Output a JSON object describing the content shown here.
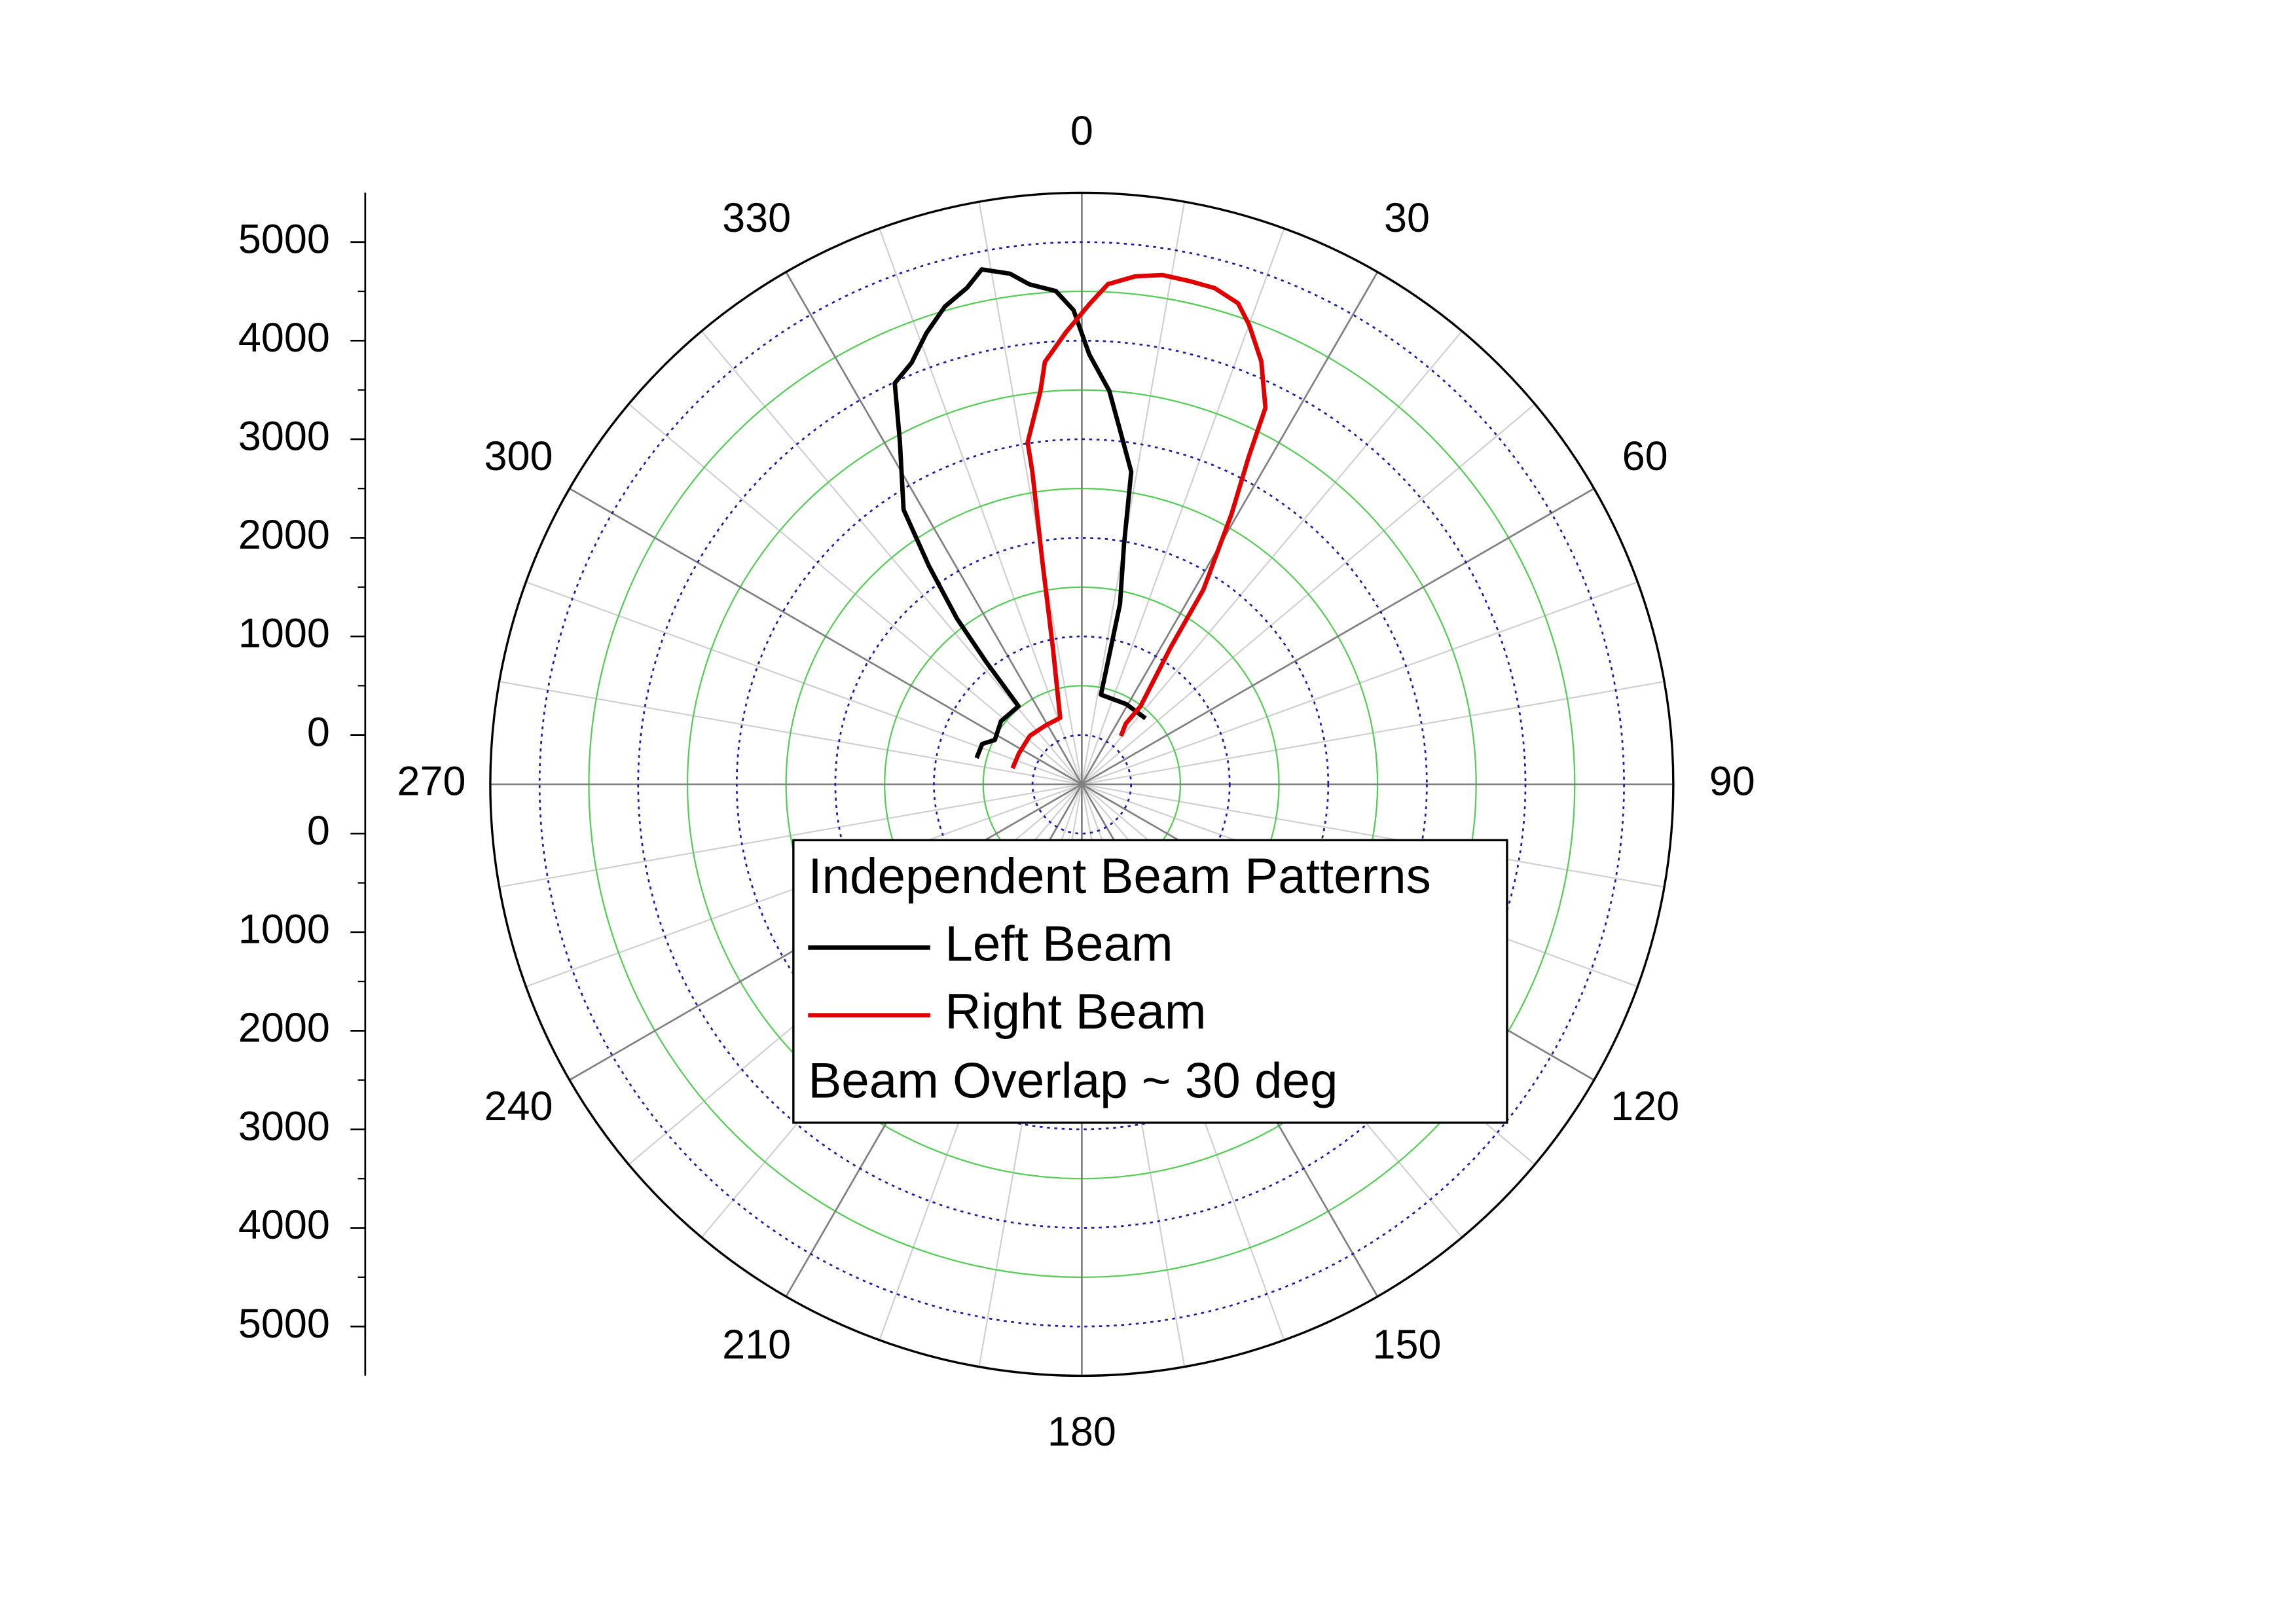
{
  "chart_data": {
    "type": "polar",
    "theta_ticks": [
      0,
      30,
      60,
      90,
      120,
      150,
      180,
      210,
      240,
      270,
      300,
      330
    ],
    "rlim": [
      -500,
      5500
    ],
    "rticks": [
      0,
      1000,
      2000,
      3000,
      4000,
      5000
    ],
    "legend_title": "Independent Beam Patterns",
    "annotation": "Beam Overlap ~ 30 deg",
    "series": [
      {
        "name": "Left Beam",
        "color": "#000000",
        "theta": [
          284,
          292,
          297,
          308,
          321,
          322,
          323,
          325,
          327,
          332,
          335,
          338,
          341,
          344,
          347,
          349,
          352,
          354,
          357,
          359,
          1,
          4,
          6,
          9,
          10,
          12,
          12,
          12,
          29,
          44
        ],
        "values": [
          600,
          590,
          490,
          540,
          520,
          1070,
          1600,
          2200,
          2820,
          3430,
          3990,
          4110,
          4340,
          4540,
          4670,
          4820,
          4730,
          4600,
          4510,
          4310,
          3860,
          3500,
          3140,
          2710,
          1970,
          1370,
          760,
          430,
          430,
          430
        ]
      },
      {
        "name": "Right Beam",
        "color": "#e00000",
        "theta": [
          283,
          296,
          313,
          328,
          342,
          348,
          350,
          351,
          351,
          354,
          355,
          358,
          1,
          3,
          6,
          9,
          12,
          15,
          18,
          20,
          23,
          26,
          27,
          29,
          32,
          33,
          37,
          36,
          39
        ],
        "values": [
          220,
          210,
          220,
          200,
          210,
          910,
          1810,
          2710,
          3010,
          3510,
          3800,
          4090,
          4380,
          4580,
          4680,
          4730,
          4720,
          4710,
          4630,
          4460,
          4160,
          3750,
          3230,
          2630,
          1830,
          1150,
          490,
          260,
          130
        ]
      }
    ]
  }
}
